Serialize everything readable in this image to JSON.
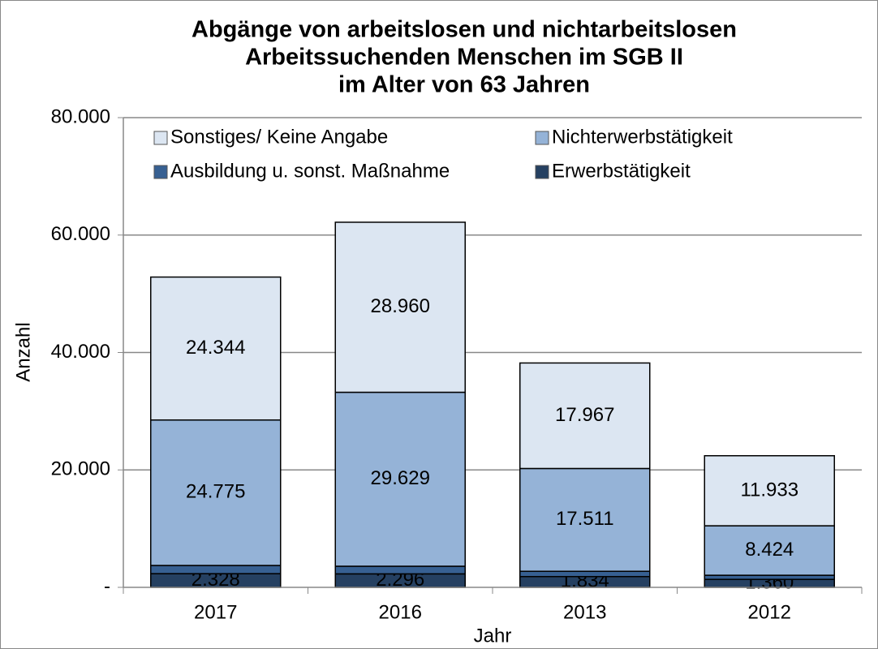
{
  "chart_data": {
    "type": "bar",
    "stacked": true,
    "title": [
      "Abgänge von arbeitslosen und nichtarbeitslosen",
      "Arbeitssuchenden Menschen im SGB II",
      "im Alter von 63 Jahren"
    ],
    "x_label": "Jahr",
    "y_label": "Anzahl",
    "categories": [
      "2017",
      "2016",
      "2013",
      "2012"
    ],
    "series": [
      {
        "name": "Erwerbstätigkeit",
        "color": "#254061",
        "values": [
          2328,
          2296,
          1834,
          1360
        ],
        "value_labels": [
          "2.328",
          "2.296",
          "1.834",
          "1.360"
        ],
        "label_color": "#ffffff"
      },
      {
        "name": "Ausbildung u. sonst. Maßnahme",
        "color": "#376092",
        "values": [
          1400,
          1300,
          900,
          700
        ]
      },
      {
        "name": "Nichterwerbstätigkeit",
        "color": "#95b3d7",
        "values": [
          24775,
          29629,
          17511,
          8424
        ],
        "value_labels": [
          "24.775",
          "29.629",
          "17.511",
          "8.424"
        ],
        "label_color": "#000000"
      },
      {
        "name": "Sonstiges/ Keine Angabe",
        "color": "#dce6f2",
        "values": [
          24344,
          28960,
          17967,
          11933
        ],
        "value_labels": [
          "24.344",
          "28.960",
          "17.967",
          "11.933"
        ],
        "label_color": "#000000"
      }
    ],
    "ylim": [
      0,
      80000
    ],
    "yticks": [
      {
        "value": 0,
        "label": "-"
      },
      {
        "value": 20000,
        "label": "20.000"
      },
      {
        "value": 40000,
        "label": "40.000"
      },
      {
        "value": 60000,
        "label": "60.000"
      },
      {
        "value": 80000,
        "label": "80.000"
      }
    ],
    "grid": true,
    "legend": "top"
  }
}
